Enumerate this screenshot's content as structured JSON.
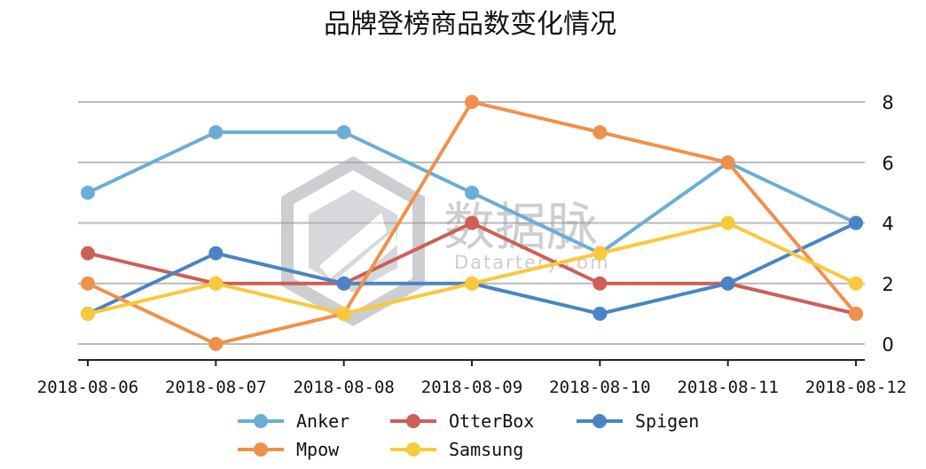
{
  "chart_data": {
    "type": "line",
    "title": "品牌登榜商品数变化情况",
    "categories": [
      "2018-08-06",
      "2018-08-07",
      "2018-08-08",
      "2018-08-09",
      "2018-08-10",
      "2018-08-11",
      "2018-08-12"
    ],
    "yticks": [
      0,
      2,
      4,
      6,
      8
    ],
    "ylim": [
      -0.6,
      8.3
    ],
    "y_axis_side": "right",
    "grid": true,
    "legend_position": "bottom",
    "series": [
      {
        "name": "Anker",
        "color": "#6aaed6",
        "values": [
          5,
          7,
          7,
          5,
          3,
          6,
          4
        ]
      },
      {
        "name": "OtterBox",
        "color": "#cd5f57",
        "values": [
          3,
          2,
          2,
          4,
          2,
          2,
          1
        ]
      },
      {
        "name": "Spigen",
        "color": "#4a84c4",
        "values": [
          1,
          3,
          2,
          2,
          1,
          2,
          4
        ]
      },
      {
        "name": "Mpow",
        "color": "#f0914a",
        "values": [
          2,
          0,
          1,
          8,
          7,
          6,
          1
        ]
      },
      {
        "name": "Samsung",
        "color": "#f9c93c",
        "values": [
          1,
          2,
          1,
          2,
          3,
          4,
          2
        ]
      }
    ]
  },
  "watermark": {
    "text_cn": "数据脉",
    "text_en": "Datartery.com",
    "icon": "datartery-logo-icon"
  }
}
